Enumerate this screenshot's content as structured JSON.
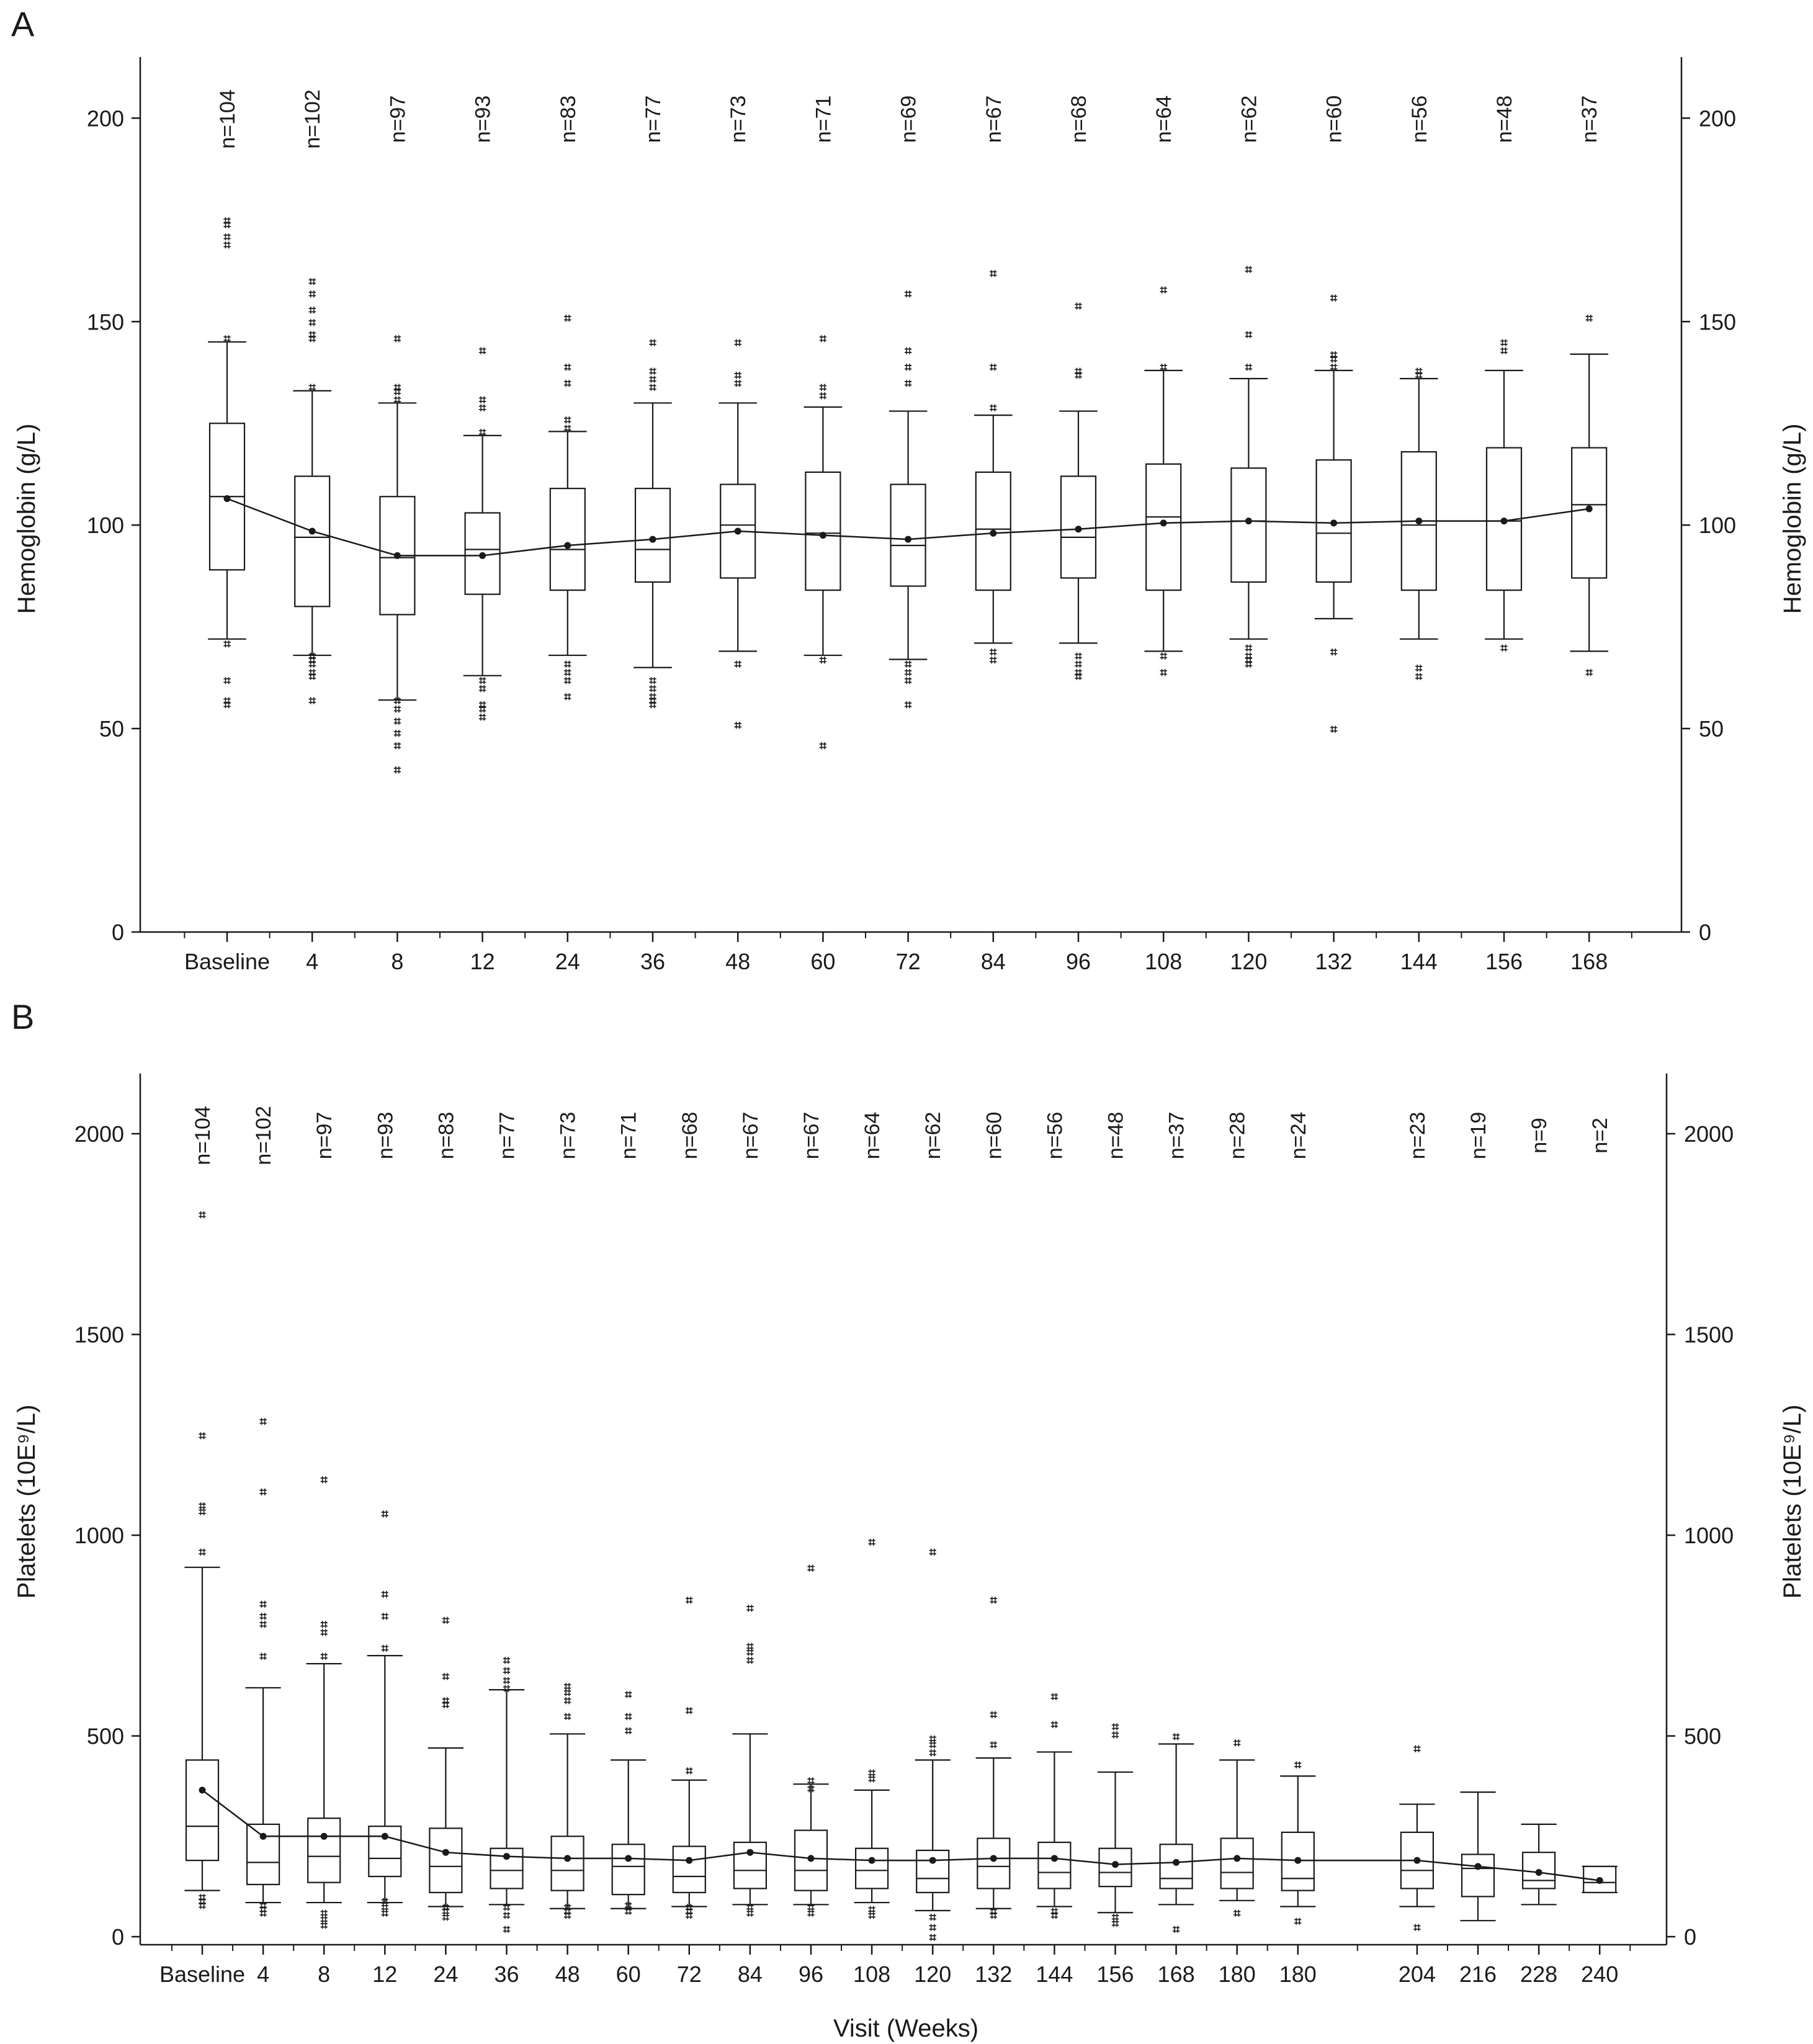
{
  "charts": [
    {
      "panel_label": "A",
      "type": "box",
      "ylabel_left": "Hemoglobin (g/L)",
      "ylabel_right": "Hemoglobin (g/L)",
      "xlabel": "",
      "ylim": [
        0,
        215
      ],
      "yticks": [
        0,
        50,
        100,
        150,
        200
      ],
      "categories": [
        "Baseline",
        "4",
        "8",
        "12",
        "24",
        "36",
        "48",
        "60",
        "72",
        "84",
        "96",
        "108",
        "120",
        "132",
        "144",
        "156",
        "168"
      ],
      "n_labels": [
        "n=104",
        "n=102",
        "n=97",
        "n=93",
        "n=83",
        "n=77",
        "n=73",
        "n=71",
        "n=69",
        "n=67",
        "n=68",
        "n=64",
        "n=62",
        "n=60",
        "n=56",
        "n=48",
        "n=37"
      ],
      "boxes": [
        {
          "q1": 89,
          "median": 107,
          "q3": 125,
          "wlo": 72,
          "whi": 145,
          "mean": 106.5,
          "outliers": [
            56,
            57,
            62,
            71,
            146,
            169,
            171,
            174,
            175
          ]
        },
        {
          "q1": 80,
          "median": 97,
          "q3": 112,
          "wlo": 68,
          "whi": 133,
          "mean": 98.5,
          "outliers": [
            57,
            63,
            64,
            66,
            67,
            68,
            134,
            146,
            147,
            150,
            153,
            157,
            160
          ]
        },
        {
          "q1": 78,
          "median": 92,
          "q3": 107,
          "wlo": 57,
          "whi": 130,
          "mean": 92.5,
          "outliers": [
            40,
            46,
            49,
            52,
            55,
            57,
            131,
            133,
            134,
            146
          ]
        },
        {
          "q1": 83,
          "median": 94,
          "q3": 103,
          "wlo": 63,
          "whi": 122,
          "mean": 92.5,
          "outliers": [
            53,
            55,
            56,
            60,
            62,
            123,
            129,
            131,
            143
          ]
        },
        {
          "q1": 84,
          "median": 94,
          "q3": 109,
          "wlo": 68,
          "whi": 123,
          "mean": 95,
          "outliers": [
            58,
            62,
            64,
            66,
            124,
            126,
            135,
            139,
            151
          ]
        },
        {
          "q1": 86,
          "median": 94,
          "q3": 109,
          "wlo": 65,
          "whi": 130,
          "mean": 96.5,
          "outliers": [
            56,
            57,
            58,
            60,
            62,
            134,
            136,
            138,
            145
          ]
        },
        {
          "q1": 87,
          "median": 100,
          "q3": 110,
          "wlo": 69,
          "whi": 130,
          "mean": 98.5,
          "outliers": [
            51,
            66,
            135,
            137,
            145
          ]
        },
        {
          "q1": 84,
          "median": 98,
          "q3": 113,
          "wlo": 68,
          "whi": 129,
          "mean": 97.5,
          "outliers": [
            46,
            67,
            132,
            134,
            146
          ]
        },
        {
          "q1": 85,
          "median": 95,
          "q3": 110,
          "wlo": 67,
          "whi": 128,
          "mean": 96.5,
          "outliers": [
            56,
            62,
            64,
            66,
            135,
            139,
            143,
            157
          ]
        },
        {
          "q1": 84,
          "median": 99,
          "q3": 113,
          "wlo": 71,
          "whi": 127,
          "mean": 98,
          "outliers": [
            67,
            69,
            129,
            139,
            162
          ]
        },
        {
          "q1": 87,
          "median": 97,
          "q3": 112,
          "wlo": 71,
          "whi": 128,
          "mean": 99,
          "outliers": [
            63,
            64,
            66,
            68,
            137,
            138,
            154
          ]
        },
        {
          "q1": 84,
          "median": 102,
          "q3": 115,
          "wlo": 69,
          "whi": 138,
          "mean": 100.5,
          "outliers": [
            64,
            68,
            139,
            158
          ]
        },
        {
          "q1": 86,
          "median": 101,
          "q3": 114,
          "wlo": 72,
          "whi": 136,
          "mean": 101,
          "outliers": [
            66,
            67,
            68,
            70,
            139,
            147,
            163
          ]
        },
        {
          "q1": 86,
          "median": 98,
          "q3": 116,
          "wlo": 77,
          "whi": 138,
          "mean": 100.5,
          "outliers": [
            50,
            69,
            139,
            141,
            142,
            156
          ]
        },
        {
          "q1": 84,
          "median": 100,
          "q3": 118,
          "wlo": 72,
          "whi": 136,
          "mean": 101,
          "outliers": [
            63,
            65,
            137,
            138
          ]
        },
        {
          "q1": 84,
          "median": 101,
          "q3": 119,
          "wlo": 72,
          "whi": 138,
          "mean": 101,
          "outliers": [
            70,
            143,
            145
          ]
        },
        {
          "q1": 87,
          "median": 105,
          "q3": 119,
          "wlo": 69,
          "whi": 142,
          "mean": 104,
          "outliers": [
            64,
            151
          ]
        }
      ]
    },
    {
      "panel_label": "B",
      "type": "box",
      "ylabel_left": "Platelets (10E⁹/L)",
      "ylabel_right": "Platelets (10E⁹/L)",
      "xlabel": "Visit (Weeks)",
      "ylim": [
        -20,
        2150
      ],
      "yticks": [
        0,
        500,
        1000,
        1500,
        2000
      ],
      "categories": [
        "Baseline",
        "4",
        "8",
        "12",
        "24",
        "36",
        "48",
        "60",
        "72",
        "84",
        "96",
        "108",
        "120",
        "132",
        "144",
        "156",
        "168",
        "180",
        "180",
        "204",
        "216",
        "228",
        "240"
      ],
      "category_gap_after": 18,
      "n_labels": [
        "n=104",
        "n=102",
        "n=97",
        "n=93",
        "n=83",
        "n=77",
        "n=73",
        "n=71",
        "n=68",
        "n=67",
        "n=67",
        "n=64",
        "n=62",
        "n=60",
        "n=56",
        "n=48",
        "n=37",
        "n=28",
        "n=24",
        "n=23",
        "n=19",
        "n=9",
        "n=2"
      ],
      "boxes": [
        {
          "q1": 190,
          "median": 275,
          "q3": 440,
          "wlo": 115,
          "whi": 920,
          "mean": 365,
          "outliers": [
            80,
            90,
            100,
            960,
            1060,
            1075,
            1250,
            1800
          ]
        },
        {
          "q1": 130,
          "median": 185,
          "q3": 280,
          "wlo": 85,
          "whi": 620,
          "mean": 250,
          "outliers": [
            60,
            70,
            80,
            700,
            780,
            800,
            830,
            1110,
            1285
          ]
        },
        {
          "q1": 135,
          "median": 200,
          "q3": 295,
          "wlo": 85,
          "whi": 680,
          "mean": 250,
          "outliers": [
            30,
            45,
            60,
            700,
            760,
            780,
            1140
          ]
        },
        {
          "q1": 150,
          "median": 195,
          "q3": 275,
          "wlo": 85,
          "whi": 700,
          "mean": 250,
          "outliers": [
            60,
            75,
            90,
            720,
            800,
            855,
            1055
          ]
        },
        {
          "q1": 110,
          "median": 175,
          "q3": 270,
          "wlo": 75,
          "whi": 470,
          "mean": 210,
          "outliers": [
            50,
            65,
            75,
            580,
            590,
            650,
            790
          ]
        },
        {
          "q1": 120,
          "median": 165,
          "q3": 220,
          "wlo": 80,
          "whi": 615,
          "mean": 200,
          "outliers": [
            20,
            55,
            75,
            620,
            640,
            665,
            690
          ]
        },
        {
          "q1": 115,
          "median": 165,
          "q3": 250,
          "wlo": 70,
          "whi": 505,
          "mean": 195,
          "outliers": [
            55,
            65,
            75,
            550,
            590,
            610,
            625
          ]
        },
        {
          "q1": 105,
          "median": 175,
          "q3": 230,
          "wlo": 70,
          "whi": 440,
          "mean": 195,
          "outliers": [
            65,
            80,
            515,
            550,
            605
          ]
        },
        {
          "q1": 110,
          "median": 150,
          "q3": 225,
          "wlo": 75,
          "whi": 390,
          "mean": 190,
          "outliers": [
            55,
            65,
            75,
            415,
            565,
            840
          ]
        },
        {
          "q1": 120,
          "median": 165,
          "q3": 235,
          "wlo": 80,
          "whi": 505,
          "mean": 210,
          "outliers": [
            60,
            75,
            690,
            710,
            725,
            820
          ]
        },
        {
          "q1": 115,
          "median": 165,
          "q3": 265,
          "wlo": 80,
          "whi": 380,
          "mean": 195,
          "outliers": [
            60,
            75,
            370,
            390,
            920
          ]
        },
        {
          "q1": 120,
          "median": 165,
          "q3": 220,
          "wlo": 85,
          "whi": 365,
          "mean": 190,
          "outliers": [
            55,
            70,
            395,
            410,
            985
          ]
        },
        {
          "q1": 110,
          "median": 145,
          "q3": 215,
          "wlo": 65,
          "whi": 440,
          "mean": 190,
          "outliers": [
            0,
            25,
            50,
            460,
            480,
            495,
            960
          ]
        },
        {
          "q1": 120,
          "median": 175,
          "q3": 245,
          "wlo": 70,
          "whi": 445,
          "mean": 195,
          "outliers": [
            55,
            65,
            480,
            555,
            840
          ]
        },
        {
          "q1": 120,
          "median": 160,
          "q3": 235,
          "wlo": 75,
          "whi": 460,
          "mean": 195,
          "outliers": [
            55,
            65,
            530,
            600
          ]
        },
        {
          "q1": 125,
          "median": 160,
          "q3": 220,
          "wlo": 60,
          "whi": 410,
          "mean": 180,
          "outliers": [
            35,
            50,
            505,
            525
          ]
        },
        {
          "q1": 120,
          "median": 145,
          "q3": 230,
          "wlo": 80,
          "whi": 480,
          "mean": 185,
          "outliers": [
            20,
            500
          ]
        },
        {
          "q1": 120,
          "median": 160,
          "q3": 245,
          "wlo": 90,
          "whi": 440,
          "mean": 195,
          "outliers": [
            60,
            485
          ]
        },
        {
          "q1": 115,
          "median": 145,
          "q3": 260,
          "wlo": 75,
          "whi": 400,
          "mean": 190,
          "outliers": [
            40,
            430
          ]
        },
        {
          "q1": 120,
          "median": 165,
          "q3": 260,
          "wlo": 75,
          "whi": 330,
          "mean": 190,
          "outliers": [
            25,
            470
          ]
        },
        {
          "q1": 100,
          "median": 170,
          "q3": 205,
          "wlo": 40,
          "whi": 360,
          "mean": 175,
          "outliers": []
        },
        {
          "q1": 120,
          "median": 140,
          "q3": 210,
          "wlo": 80,
          "whi": 280,
          "mean": 160,
          "outliers": []
        },
        {
          "q1": 110,
          "median": 135,
          "q3": 175,
          "wlo": 110,
          "whi": 175,
          "mean": 140,
          "outliers": []
        }
      ]
    }
  ]
}
